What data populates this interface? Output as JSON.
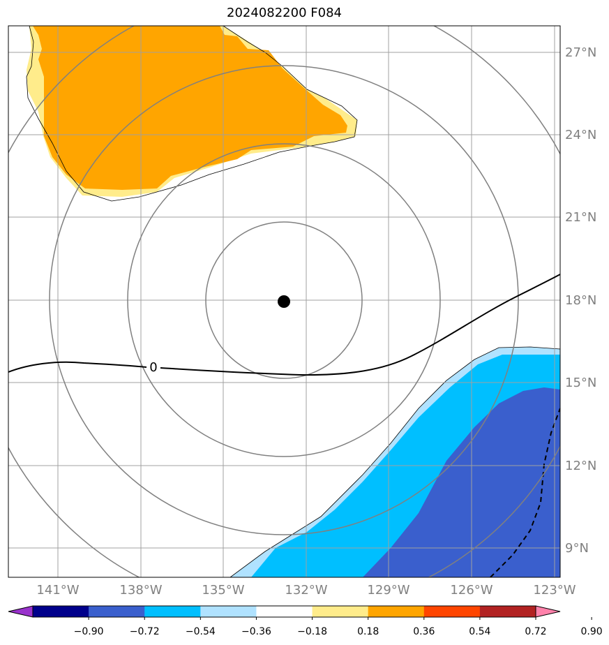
{
  "title": "2024082200 F084",
  "map": {
    "lon_ticks": [
      "141°W",
      "138°W",
      "135°W",
      "132°W",
      "129°W",
      "126°W",
      "123°W"
    ],
    "lat_ticks": [
      "27°N",
      "24°N",
      "21°N",
      "18°N",
      "15°N",
      "12°N",
      "9°N"
    ],
    "contour_label": "0",
    "center_marker": "storm-center",
    "grid_color": "#808080"
  },
  "colorbar": {
    "labels": [
      "−0.90",
      "−0.72",
      "−0.54",
      "−0.36",
      "−0.18",
      "0.18",
      "0.36",
      "0.54",
      "0.72",
      "0.90"
    ],
    "colors": [
      "#9932cc",
      "#00008b",
      "#3a5fcd",
      "#00bfff",
      "#b0e2ff",
      "#ffffff",
      "#ffec8b",
      "#ffa500",
      "#ff4500",
      "#b22222",
      "#ff82ab"
    ]
  }
}
